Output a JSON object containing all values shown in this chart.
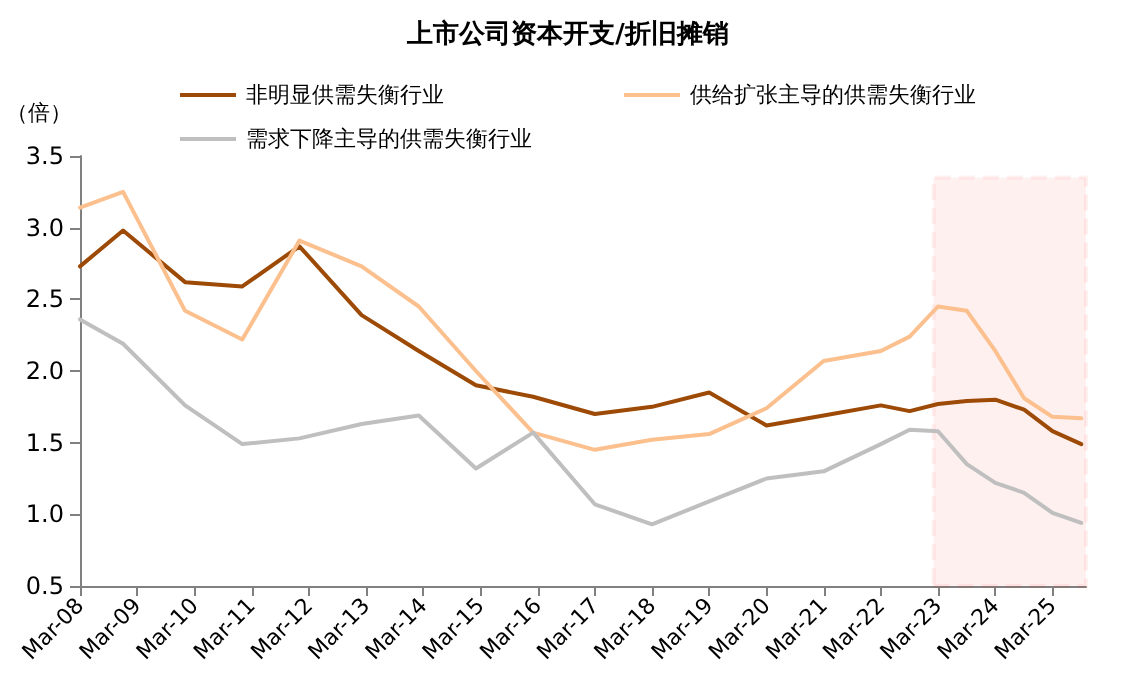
{
  "chart_data": {
    "type": "line",
    "title": "上市公司资本开支/折旧摊销",
    "ylabel": "（倍）",
    "x": [
      "2008-03",
      "2008-12",
      "2010-01",
      "2011-01",
      "2012-01",
      "2013-02",
      "2014-02",
      "2015-02",
      "2016-02",
      "2017-03",
      "2018-03",
      "2019-03",
      "2020-03",
      "2021-03",
      "2022-03",
      "2022-09",
      "2023-03",
      "2023-09",
      "2024-03",
      "2024-09",
      "2025-03",
      "2025-09"
    ],
    "series": [
      {
        "name": "非明显供需失衡行业",
        "color": "#9c4a06",
        "values": [
          2.73,
          2.98,
          2.62,
          2.59,
          2.87,
          2.39,
          2.14,
          1.9,
          1.82,
          1.7,
          1.75,
          1.85,
          1.62,
          1.69,
          1.76,
          1.72,
          1.77,
          1.79,
          1.8,
          1.73,
          1.58,
          1.49
        ]
      },
      {
        "name": "供给扩张主导的供需失衡行业",
        "color": "#fbc08e",
        "values": [
          3.14,
          3.25,
          2.42,
          2.22,
          2.91,
          2.73,
          2.45,
          2.0,
          1.57,
          1.45,
          1.52,
          1.56,
          1.74,
          2.07,
          2.14,
          2.24,
          2.45,
          2.42,
          2.14,
          1.81,
          1.68,
          1.67
        ]
      },
      {
        "name": "需求下降主导的供需失衡行业",
        "color": "#bfbfbf",
        "values": [
          2.36,
          2.19,
          1.76,
          1.49,
          1.53,
          1.63,
          1.69,
          1.32,
          1.57,
          1.07,
          0.93,
          1.09,
          1.25,
          1.3,
          1.49,
          1.59,
          1.58,
          1.35,
          1.22,
          1.15,
          1.01,
          0.94
        ]
      }
    ],
    "xlim": [
      "2008-03",
      "2025-10"
    ],
    "xticks": [
      {
        "value": "2008-03",
        "label": "Mar-08"
      },
      {
        "value": "2009-03",
        "label": "Mar-09"
      },
      {
        "value": "2010-03",
        "label": "Mar-10"
      },
      {
        "value": "2011-03",
        "label": "Mar-11"
      },
      {
        "value": "2012-03",
        "label": "Mar-12"
      },
      {
        "value": "2013-03",
        "label": "Mar-13"
      },
      {
        "value": "2014-03",
        "label": "Mar-14"
      },
      {
        "value": "2015-03",
        "label": "Mar-15"
      },
      {
        "value": "2016-03",
        "label": "Mar-16"
      },
      {
        "value": "2017-03",
        "label": "Mar-17"
      },
      {
        "value": "2018-03",
        "label": "Mar-18"
      },
      {
        "value": "2019-03",
        "label": "Mar-19"
      },
      {
        "value": "2020-03",
        "label": "Mar-20"
      },
      {
        "value": "2021-03",
        "label": "Mar-21"
      },
      {
        "value": "2022-03",
        "label": "Mar-22"
      },
      {
        "value": "2023-03",
        "label": "Mar-23"
      },
      {
        "value": "2024-03",
        "label": "Mar-24"
      },
      {
        "value": "2025-03",
        "label": "Mar-25"
      }
    ],
    "ylim": [
      0.5,
      3.5
    ],
    "yticks": [
      {
        "value": 0.5,
        "label": "0.5"
      },
      {
        "value": 1,
        "label": "1.0"
      },
      {
        "value": 1.5,
        "label": "1.5"
      },
      {
        "value": 2,
        "label": "2.0"
      },
      {
        "value": 2.5,
        "label": "2.5"
      },
      {
        "value": 3,
        "label": "3.0"
      },
      {
        "value": 3.5,
        "label": "3.5"
      }
    ],
    "bands": [
      {
        "axis": "x",
        "from": "2023-02",
        "to": "2025-10",
        "color": "#ff0000"
      }
    ],
    "grid": false,
    "legend": "top",
    "marker": "none",
    "line_style": "solid"
  }
}
